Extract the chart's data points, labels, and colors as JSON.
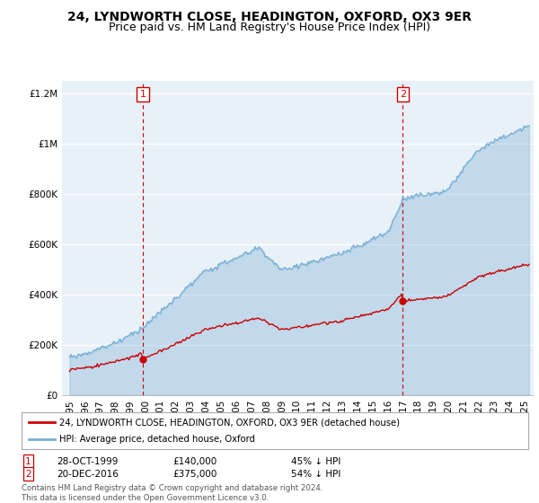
{
  "title": "24, LYNDWORTH CLOSE, HEADINGTON, OXFORD, OX3 9ER",
  "subtitle": "Price paid vs. HM Land Registry's House Price Index (HPI)",
  "ylabel_ticks": [
    "£0",
    "£200K",
    "£400K",
    "£600K",
    "£800K",
    "£1M",
    "£1.2M"
  ],
  "ytick_values": [
    0,
    200000,
    400000,
    600000,
    800000,
    1000000,
    1200000
  ],
  "ylim": [
    0,
    1250000
  ],
  "sale1_date": 1999.83,
  "sale1_price": 140000,
  "sale2_date": 2016.97,
  "sale2_price": 375000,
  "red_line_color": "#cc0000",
  "blue_line_color": "#7ab0d4",
  "blue_fill_color": "#ddeeff",
  "dashed_red_color": "#cc0000",
  "background_color": "#ffffff",
  "plot_bg_color": "#e8f0f8",
  "grid_color": "#ffffff",
  "legend_label_red": "24, LYNDWORTH CLOSE, HEADINGTON, OXFORD, OX3 9ER (detached house)",
  "legend_label_blue": "HPI: Average price, detached house, Oxford",
  "table_row1": [
    "1",
    "28-OCT-1999",
    "£140,000",
    "45% ↓ HPI"
  ],
  "table_row2": [
    "2",
    "20-DEC-2016",
    "£375,000",
    "54% ↓ HPI"
  ],
  "footnote": "Contains HM Land Registry data © Crown copyright and database right 2024.\nThis data is licensed under the Open Government Licence v3.0.",
  "title_fontsize": 10,
  "subtitle_fontsize": 9,
  "axis_fontsize": 7.5
}
